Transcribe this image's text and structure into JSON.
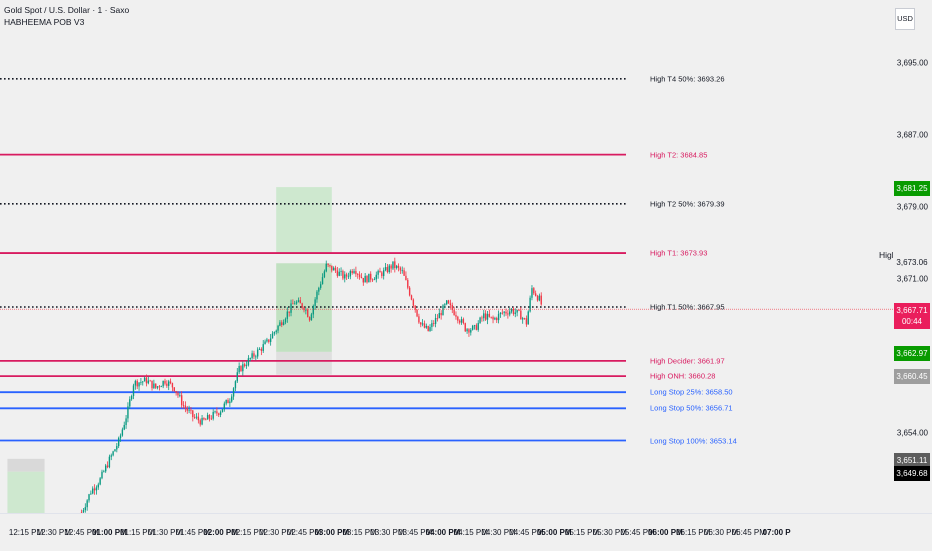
{
  "header": {
    "symbol": "Gold Spot / U.S. Dollar · 1 · Saxo",
    "indicator": "HABHEEMA POB V3"
  },
  "currency": "USD",
  "high_label": "High",
  "price_axis": {
    "min": 3645.1,
    "max": 3702.0,
    "ticks": [
      {
        "value": 3695,
        "label": "3,695.00"
      },
      {
        "value": 3687,
        "label": "3,687.00"
      },
      {
        "value": 3679,
        "label": "3,679.00"
      },
      {
        "value": 3671,
        "label": "3,671.00"
      },
      {
        "value": 3654,
        "label": "3,654.00"
      }
    ],
    "tags": [
      {
        "value": 3681.25,
        "label": "3,681.25",
        "color": "#089b00"
      },
      {
        "value": 3673.06,
        "label": "3,673.06",
        "color": "transparent",
        "text_color": "#131722"
      },
      {
        "value": 3667.71,
        "label": "3,667.71",
        "sub": "00:44",
        "color": "#ea1e5c"
      },
      {
        "value": 3662.97,
        "label": "3,662.97",
        "color": "#089b00"
      },
      {
        "value": 3660.45,
        "label": "3,660.45",
        "color": "#9e9e9e"
      },
      {
        "value": 3651.11,
        "label": "3,651.11",
        "color": "#5d5d5d"
      },
      {
        "value": 3649.68,
        "label": "3,649.68",
        "color": "#000000"
      }
    ]
  },
  "levels": [
    {
      "label": "High T4 50%: 3693.26",
      "value": 3693.26,
      "color": "#131722",
      "style": "dotted",
      "text_color": "#131722"
    },
    {
      "label": "High T2: 3684.85",
      "value": 3684.85,
      "color": "#d81b60",
      "style": "solid",
      "text_color": "#d81b60"
    },
    {
      "label": "High T2 50%: 3679.39",
      "value": 3679.39,
      "color": "#131722",
      "style": "dotted",
      "text_color": "#131722"
    },
    {
      "label": "High T1: 3673.93",
      "value": 3673.93,
      "color": "#d81b60",
      "style": "solid",
      "text_color": "#d81b60"
    },
    {
      "label": "High T1 50%: 3667.95",
      "value": 3667.95,
      "color": "#131722",
      "style": "dotted",
      "text_color": "#131722"
    },
    {
      "label": "High Decider: 3661.97",
      "value": 3661.97,
      "color": "#d81b60",
      "style": "solid",
      "text_color": "#d81b60"
    },
    {
      "label": "High ONH: 3660.28",
      "value": 3660.28,
      "color": "#d81b60",
      "style": "solid",
      "text_color": "#d81b60"
    },
    {
      "label": "Long Stop 25%: 3658.50",
      "value": 3658.5,
      "color": "#2962ff",
      "style": "solid",
      "text_color": "#2962ff"
    },
    {
      "label": "Long Stop 50%: 3656.71",
      "value": 3656.71,
      "color": "#2962ff",
      "style": "solid",
      "text_color": "#2962ff"
    },
    {
      "label": "Long Stop 100%: 3653.14",
      "value": 3653.14,
      "color": "#2962ff",
      "style": "solid",
      "text_color": "#2962ff"
    }
  ],
  "zones": [
    {
      "name": "upper-green-zone",
      "from_time": "02:30 PM",
      "to_time": "03:00 PM",
      "top": 3681.25,
      "bottom": 3673.93,
      "color": "#c8e6c9"
    },
    {
      "name": "mid-green-zone",
      "from_time": "02:30 PM",
      "to_time": "03:00 PM",
      "top": 3672.8,
      "bottom": 3662.97,
      "color": "#b9deb9"
    },
    {
      "name": "lower-gray-zone",
      "from_time": "02:30 PM",
      "to_time": "03:00 PM",
      "top": 3662.97,
      "bottom": 3660.45,
      "color": "#dcdcdc"
    },
    {
      "name": "left-gray-zone",
      "from_time": "12:05 PM",
      "to_time": "12:25 PM",
      "top": 3651.11,
      "bottom": 3649.68,
      "color": "#d5d5d5"
    },
    {
      "name": "left-green-zone",
      "from_time": "12:05 PM",
      "to_time": "12:25 PM",
      "top": 3649.68,
      "bottom": 3645.1,
      "color": "#c8e6c9"
    }
  ],
  "time_axis": [
    {
      "label": "12:15 PM",
      "bold": false
    },
    {
      "label": "12:30 PM",
      "bold": false
    },
    {
      "label": "12:45 PM",
      "bold": false
    },
    {
      "label": "01:00 PM",
      "bold": true
    },
    {
      "label": "01:15 PM",
      "bold": false
    },
    {
      "label": "01:30 PM",
      "bold": false
    },
    {
      "label": "01:45 PM",
      "bold": false
    },
    {
      "label": "02:00 PM",
      "bold": true
    },
    {
      "label": "02:15 PM",
      "bold": false
    },
    {
      "label": "02:30 PM",
      "bold": false
    },
    {
      "label": "02:45 PM",
      "bold": false
    },
    {
      "label": "03:00 PM",
      "bold": true
    },
    {
      "label": "03:15 PM",
      "bold": false
    },
    {
      "label": "03:30 PM",
      "bold": false
    },
    {
      "label": "03:45 PM",
      "bold": false
    },
    {
      "label": "04:00 PM",
      "bold": true
    },
    {
      "label": "04:15 PM",
      "bold": false
    },
    {
      "label": "04:30 PM",
      "bold": false
    },
    {
      "label": "04:45 PM",
      "bold": false
    },
    {
      "label": "05:00 PM",
      "bold": true
    },
    {
      "label": "05:15 PM",
      "bold": false
    },
    {
      "label": "05:30 PM",
      "bold": false
    },
    {
      "label": "05:45 PM",
      "bold": false
    },
    {
      "label": "06:00 PM",
      "bold": true
    },
    {
      "label": "06:15 PM",
      "bold": false
    },
    {
      "label": "06:30 PM",
      "bold": false
    },
    {
      "label": "06:45 PM",
      "bold": false
    },
    {
      "label": "07:00 P",
      "bold": true
    }
  ],
  "chart_data": {
    "type": "candlestick",
    "colors": {
      "up": "#089981",
      "down": "#f23645"
    },
    "price_path": [
      {
        "time": "12:45 PM",
        "price": 3645.2
      },
      {
        "time": "12:50 PM",
        "price": 3647.5
      },
      {
        "time": "12:55 PM",
        "price": 3648.8
      },
      {
        "time": "01:00 PM",
        "price": 3651.0
      },
      {
        "time": "01:05 PM",
        "price": 3653.0
      },
      {
        "time": "01:10 PM",
        "price": 3656.5
      },
      {
        "time": "01:13 PM",
        "price": 3659.5
      },
      {
        "time": "01:20 PM",
        "price": 3659.8
      },
      {
        "time": "01:25 PM",
        "price": 3659.0
      },
      {
        "time": "01:30 PM",
        "price": 3659.8
      },
      {
        "time": "01:35 PM",
        "price": 3659.0
      },
      {
        "time": "01:40 PM",
        "price": 3657.0
      },
      {
        "time": "01:45 PM",
        "price": 3655.8
      },
      {
        "time": "01:50 PM",
        "price": 3655.2
      },
      {
        "time": "01:55 PM",
        "price": 3655.8
      },
      {
        "time": "02:00 PM",
        "price": 3656.5
      },
      {
        "time": "02:05 PM",
        "price": 3657.8
      },
      {
        "time": "02:10 PM",
        "price": 3661.0
      },
      {
        "time": "02:15 PM",
        "price": 3662.0
      },
      {
        "time": "02:20 PM",
        "price": 3663.0
      },
      {
        "time": "02:25 PM",
        "price": 3664.0
      },
      {
        "time": "02:30 PM",
        "price": 3665.5
      },
      {
        "time": "02:35 PM",
        "price": 3667.0
      },
      {
        "time": "02:40 PM",
        "price": 3668.5
      },
      {
        "time": "02:45 PM",
        "price": 3668.0
      },
      {
        "time": "02:48 PM",
        "price": 3666.8
      },
      {
        "time": "02:52 PM",
        "price": 3669.5
      },
      {
        "time": "02:57 PM",
        "price": 3672.5
      },
      {
        "time": "03:02 PM",
        "price": 3672.0
      },
      {
        "time": "03:07 PM",
        "price": 3671.2
      },
      {
        "time": "03:12 PM",
        "price": 3672.3
      },
      {
        "time": "03:17 PM",
        "price": 3671.0
      },
      {
        "time": "03:22 PM",
        "price": 3671.3
      },
      {
        "time": "03:28 PM",
        "price": 3671.8
      },
      {
        "time": "03:33 PM",
        "price": 3672.6
      },
      {
        "time": "03:38 PM",
        "price": 3671.8
      },
      {
        "time": "03:43 PM",
        "price": 3669.0
      },
      {
        "time": "03:48 PM",
        "price": 3666.0
      },
      {
        "time": "03:52 PM",
        "price": 3665.3
      },
      {
        "time": "03:57 PM",
        "price": 3666.8
      },
      {
        "time": "04:02 PM",
        "price": 3668.3
      },
      {
        "time": "04:07 PM",
        "price": 3667.2
      },
      {
        "time": "04:12 PM",
        "price": 3665.6
      },
      {
        "time": "04:17 PM",
        "price": 3665.5
      },
      {
        "time": "04:22 PM",
        "price": 3667.0
      },
      {
        "time": "04:27 PM",
        "price": 3666.5
      },
      {
        "time": "04:32 PM",
        "price": 3667.3
      },
      {
        "time": "04:37 PM",
        "price": 3667.6
      },
      {
        "time": "04:42 PM",
        "price": 3667.0
      },
      {
        "time": "04:45 PM",
        "price": 3666.2
      },
      {
        "time": "04:48 PM",
        "price": 3670.0
      },
      {
        "time": "04:52 PM",
        "price": 3668.8
      },
      {
        "time": "04:54 PM",
        "price": 3667.7
      }
    ]
  }
}
